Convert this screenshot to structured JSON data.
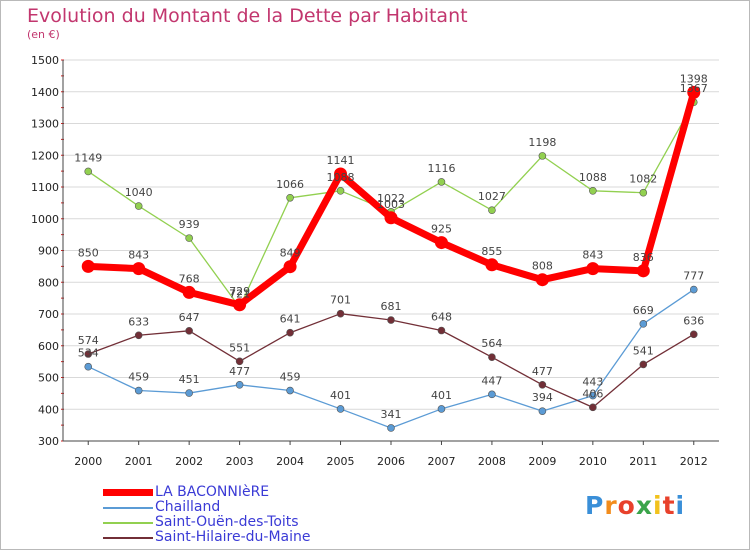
{
  "chart_data": {
    "type": "line",
    "title": "Evolution du Montant de la Dette par Habitant",
    "subtitle": "(en €)",
    "ylim": [
      300,
      1500
    ],
    "y_ticks": [
      300,
      400,
      500,
      600,
      700,
      800,
      900,
      1000,
      1100,
      1200,
      1300,
      1400,
      1500
    ],
    "x": [
      "2000",
      "2001",
      "2002",
      "2003",
      "2004",
      "2005",
      "2006",
      "2007",
      "2008",
      "2009",
      "2010",
      "2011",
      "2012"
    ],
    "grid": "horizontal",
    "legend_position": "bottom-left",
    "series": [
      {
        "name": "LA BACONNIèRE",
        "color": "#ff0000",
        "values": [
          850,
          843,
          768,
          729,
          849,
          1141,
          1003,
          925,
          855,
          808,
          843,
          836,
          1398
        ]
      },
      {
        "name": "Chailland",
        "color": "#5b9bd5",
        "values": [
          534,
          459,
          451,
          477,
          459,
          401,
          341,
          401,
          447,
          394,
          443,
          669,
          777
        ]
      },
      {
        "name": "Saint-Ouën-des-Toits",
        "color": "#92d050",
        "values": [
          1149,
          1040,
          939,
          721,
          1066,
          1088,
          1022,
          1116,
          1027,
          1198,
          1088,
          1082,
          1367
        ]
      },
      {
        "name": "Saint-Hilaire-du-Maine",
        "color": "#722f37",
        "values": [
          574,
          633,
          647,
          551,
          641,
          701,
          681,
          648,
          564,
          477,
          406,
          541,
          636
        ]
      }
    ]
  },
  "legend_colors": {
    "LA BACONNIèRE": "#ff0000",
    "Chailland": "#5b9bd5",
    "Saint-Ouën-des-Toits": "#92d050",
    "Saint-Hilaire-du-Maine": "#722f37"
  },
  "logo": {
    "text": "Proxiti",
    "letters": [
      "P",
      "r",
      "o",
      "x",
      "i",
      "t",
      "i"
    ],
    "colors": [
      "#3a8fd8",
      "#f28c1c",
      "#e8412c",
      "#3aa44a",
      "#f2c21c",
      "#e8412c",
      "#3a8fd8"
    ]
  }
}
